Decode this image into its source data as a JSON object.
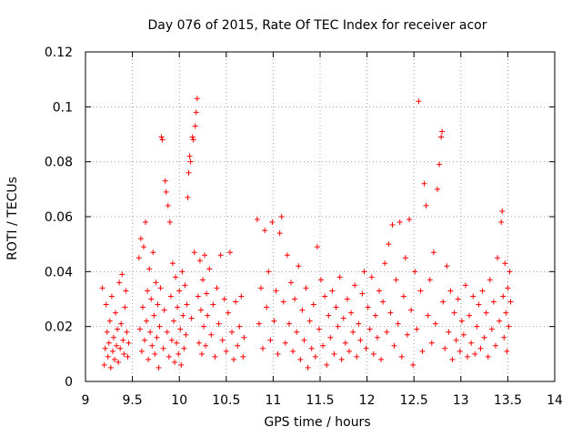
{
  "chart_data": {
    "type": "scatter",
    "title": "Day 076 of 2015, Rate Of TEC Index for receiver acor",
    "xlabel": "GPS time / hours",
    "ylabel": "ROTI / TECUs",
    "xlim": [
      9,
      14
    ],
    "ylim": [
      0,
      0.12
    ],
    "xticks": [
      9,
      9.5,
      10,
      10.5,
      11,
      11.5,
      12,
      12.5,
      13,
      13.5,
      14
    ],
    "xtick_labels": [
      "9",
      "9.5",
      "10",
      "10.5",
      "11",
      "11.5",
      "12",
      "12.5",
      "13",
      "13.5",
      "14"
    ],
    "yticks": [
      0,
      0.02,
      0.04,
      0.06,
      0.08,
      0.1,
      0.12
    ],
    "ytick_labels": [
      "0",
      "0.02",
      "0.04",
      "0.06",
      "0.08",
      "0.1",
      "0.12"
    ],
    "grid": true,
    "marker": "+",
    "color": "#ff0000",
    "series": [
      {
        "name": "ROTI",
        "points": [
          [
            9.18,
            0.034
          ],
          [
            9.2,
            0.006
          ],
          [
            9.21,
            0.012
          ],
          [
            9.22,
            0.028
          ],
          [
            9.23,
            0.018
          ],
          [
            9.24,
            0.009
          ],
          [
            9.25,
            0.014
          ],
          [
            9.26,
            0.022
          ],
          [
            9.27,
            0.005
          ],
          [
            9.28,
            0.031
          ],
          [
            9.29,
            0.011
          ],
          [
            9.3,
            0.016
          ],
          [
            9.31,
            0.008
          ],
          [
            9.32,
            0.025
          ],
          [
            9.33,
            0.013
          ],
          [
            9.34,
            0.019
          ],
          [
            9.35,
            0.007
          ],
          [
            9.36,
            0.036
          ],
          [
            9.37,
            0.012
          ],
          [
            9.38,
            0.021
          ],
          [
            9.39,
            0.039
          ],
          [
            9.4,
            0.015
          ],
          [
            9.41,
            0.01
          ],
          [
            9.42,
            0.027
          ],
          [
            9.43,
            0.033
          ],
          [
            9.44,
            0.018
          ],
          [
            9.45,
            0.009
          ],
          [
            9.46,
            0.014
          ],
          [
            9.57,
            0.045
          ],
          [
            9.58,
            0.019
          ],
          [
            9.59,
            0.052
          ],
          [
            9.6,
            0.011
          ],
          [
            9.61,
            0.027
          ],
          [
            9.62,
            0.049
          ],
          [
            9.63,
            0.015
          ],
          [
            9.64,
            0.058
          ],
          [
            9.65,
            0.022
          ],
          [
            9.66,
            0.033
          ],
          [
            9.67,
            0.008
          ],
          [
            9.68,
            0.041
          ],
          [
            9.69,
            0.018
          ],
          [
            9.7,
            0.03
          ],
          [
            9.71,
            0.013
          ],
          [
            9.72,
            0.047
          ],
          [
            9.73,
            0.024
          ],
          [
            9.74,
            0.01
          ],
          [
            9.75,
            0.036
          ],
          [
            9.76,
            0.016
          ],
          [
            9.77,
            0.028
          ],
          [
            9.78,
            0.005
          ],
          [
            9.79,
            0.02
          ],
          [
            9.8,
            0.034
          ],
          [
            9.81,
            0.089
          ],
          [
            9.82,
            0.088
          ],
          [
            9.83,
            0.012
          ],
          [
            9.84,
            0.026
          ],
          [
            9.85,
            0.073
          ],
          [
            9.86,
            0.069
          ],
          [
            9.87,
            0.018
          ],
          [
            9.88,
            0.064
          ],
          [
            9.89,
            0.009
          ],
          [
            9.9,
            0.058
          ],
          [
            9.91,
            0.031
          ],
          [
            9.92,
            0.015
          ],
          [
            9.93,
            0.043
          ],
          [
            9.94,
            0.022
          ],
          [
            9.95,
            0.007
          ],
          [
            9.96,
            0.038
          ],
          [
            9.97,
            0.014
          ],
          [
            9.98,
            0.027
          ],
          [
            9.99,
            0.01
          ],
          [
            10.0,
            0.033
          ],
          [
            10.01,
            0.019
          ],
          [
            10.02,
            0.006
          ],
          [
            10.03,
            0.04
          ],
          [
            10.04,
            0.024
          ],
          [
            10.05,
            0.012
          ],
          [
            10.06,
            0.035
          ],
          [
            10.07,
            0.017
          ],
          [
            10.08,
            0.028
          ],
          [
            10.09,
            0.067
          ],
          [
            10.1,
            0.076
          ],
          [
            10.11,
            0.082
          ],
          [
            10.12,
            0.08
          ],
          [
            10.13,
            0.023
          ],
          [
            10.14,
            0.089
          ],
          [
            10.15,
            0.088
          ],
          [
            10.16,
            0.047
          ],
          [
            10.17,
            0.093
          ],
          [
            10.18,
            0.098
          ],
          [
            10.19,
            0.103
          ],
          [
            10.2,
            0.031
          ],
          [
            10.21,
            0.014
          ],
          [
            10.22,
            0.044
          ],
          [
            10.23,
            0.026
          ],
          [
            10.24,
            0.01
          ],
          [
            10.25,
            0.037
          ],
          [
            10.26,
            0.02
          ],
          [
            10.27,
            0.046
          ],
          [
            10.28,
            0.013
          ],
          [
            10.29,
            0.032
          ],
          [
            10.3,
            0.024
          ],
          [
            10.32,
            0.041
          ],
          [
            10.34,
            0.017
          ],
          [
            10.36,
            0.028
          ],
          [
            10.38,
            0.009
          ],
          [
            10.4,
            0.034
          ],
          [
            10.42,
            0.021
          ],
          [
            10.44,
            0.046
          ],
          [
            10.46,
            0.015
          ],
          [
            10.48,
            0.03
          ],
          [
            10.5,
            0.011
          ],
          [
            10.52,
            0.025
          ],
          [
            10.54,
            0.047
          ],
          [
            10.56,
            0.018
          ],
          [
            10.58,
            0.008
          ],
          [
            10.6,
            0.029
          ],
          [
            10.62,
            0.013
          ],
          [
            10.64,
            0.02
          ],
          [
            10.66,
            0.031
          ],
          [
            10.68,
            0.009
          ],
          [
            10.69,
            0.016
          ],
          [
            10.83,
            0.059
          ],
          [
            10.85,
            0.021
          ],
          [
            10.87,
            0.034
          ],
          [
            10.89,
            0.012
          ],
          [
            10.91,
            0.055
          ],
          [
            10.93,
            0.027
          ],
          [
            10.95,
            0.04
          ],
          [
            10.97,
            0.015
          ],
          [
            10.99,
            0.058
          ],
          [
            11.01,
            0.022
          ],
          [
            11.03,
            0.033
          ],
          [
            11.05,
            0.01
          ],
          [
            11.07,
            0.054
          ],
          [
            11.09,
            0.06
          ],
          [
            11.11,
            0.029
          ],
          [
            11.13,
            0.014
          ],
          [
            11.15,
            0.046
          ],
          [
            11.17,
            0.021
          ],
          [
            11.19,
            0.036
          ],
          [
            11.21,
            0.011
          ],
          [
            11.23,
            0.03
          ],
          [
            11.25,
            0.018
          ],
          [
            11.27,
            0.042
          ],
          [
            11.29,
            0.008
          ],
          [
            11.31,
            0.026
          ],
          [
            11.33,
            0.015
          ],
          [
            11.35,
            0.034
          ],
          [
            11.37,
            0.005
          ],
          [
            11.39,
            0.022
          ],
          [
            11.41,
            0.012
          ],
          [
            11.43,
            0.028
          ],
          [
            11.45,
            0.009
          ],
          [
            11.47,
            0.049
          ],
          [
            11.49,
            0.019
          ],
          [
            11.51,
            0.037
          ],
          [
            11.53,
            0.013
          ],
          [
            11.55,
            0.031
          ],
          [
            11.57,
            0.006
          ],
          [
            11.59,
            0.024
          ],
          [
            11.61,
            0.016
          ],
          [
            11.63,
            0.033
          ],
          [
            11.65,
            0.01
          ],
          [
            11.67,
            0.027
          ],
          [
            11.69,
            0.02
          ],
          [
            11.71,
            0.038
          ],
          [
            11.73,
            0.008
          ],
          [
            11.75,
            0.023
          ],
          [
            11.77,
            0.014
          ],
          [
            11.79,
            0.03
          ],
          [
            11.81,
            0.011
          ],
          [
            11.83,
            0.025
          ],
          [
            11.85,
            0.018
          ],
          [
            11.87,
            0.035
          ],
          [
            11.89,
            0.009
          ],
          [
            11.91,
            0.021
          ],
          [
            11.93,
            0.015
          ],
          [
            11.95,
            0.032
          ],
          [
            11.97,
            0.04
          ],
          [
            11.99,
            0.012
          ],
          [
            12.01,
            0.027
          ],
          [
            12.03,
            0.019
          ],
          [
            12.05,
            0.038
          ],
          [
            12.07,
            0.01
          ],
          [
            12.09,
            0.024
          ],
          [
            12.11,
            0.016
          ],
          [
            12.13,
            0.033
          ],
          [
            12.15,
            0.008
          ],
          [
            12.17,
            0.029
          ],
          [
            12.19,
            0.043
          ],
          [
            12.21,
            0.018
          ],
          [
            12.23,
            0.05
          ],
          [
            12.25,
            0.025
          ],
          [
            12.27,
            0.057
          ],
          [
            12.29,
            0.013
          ],
          [
            12.31,
            0.037
          ],
          [
            12.33,
            0.021
          ],
          [
            12.35,
            0.058
          ],
          [
            12.37,
            0.009
          ],
          [
            12.39,
            0.031
          ],
          [
            12.41,
            0.045
          ],
          [
            12.43,
            0.017
          ],
          [
            12.45,
            0.059
          ],
          [
            12.47,
            0.026
          ],
          [
            12.49,
            0.006
          ],
          [
            12.51,
            0.04
          ],
          [
            12.53,
            0.019
          ],
          [
            12.55,
            0.102
          ],
          [
            12.57,
            0.033
          ],
          [
            12.59,
            0.011
          ],
          [
            12.61,
            0.072
          ],
          [
            12.63,
            0.064
          ],
          [
            12.65,
            0.024
          ],
          [
            12.67,
            0.037
          ],
          [
            12.69,
            0.014
          ],
          [
            12.71,
            0.047
          ],
          [
            12.73,
            0.021
          ],
          [
            12.75,
            0.07
          ],
          [
            12.77,
            0.079
          ],
          [
            12.79,
            0.089
          ],
          [
            12.8,
            0.091
          ],
          [
            12.81,
            0.029
          ],
          [
            12.83,
            0.012
          ],
          [
            12.85,
            0.042
          ],
          [
            12.87,
            0.018
          ],
          [
            12.89,
            0.033
          ],
          [
            12.91,
            0.008
          ],
          [
            12.93,
            0.025
          ],
          [
            12.95,
            0.015
          ],
          [
            12.97,
            0.03
          ],
          [
            12.99,
            0.011
          ],
          [
            13.01,
            0.022
          ],
          [
            13.03,
            0.017
          ],
          [
            13.05,
            0.035
          ],
          [
            13.07,
            0.009
          ],
          [
            13.09,
            0.024
          ],
          [
            13.11,
            0.014
          ],
          [
            13.13,
            0.031
          ],
          [
            13.15,
            0.01
          ],
          [
            13.17,
            0.02
          ],
          [
            13.19,
            0.028
          ],
          [
            13.21,
            0.012
          ],
          [
            13.23,
            0.033
          ],
          [
            13.25,
            0.016
          ],
          [
            13.27,
            0.025
          ],
          [
            13.29,
            0.009
          ],
          [
            13.31,
            0.037
          ],
          [
            13.33,
            0.019
          ],
          [
            13.35,
            0.029
          ],
          [
            13.37,
            0.013
          ],
          [
            13.39,
            0.045
          ],
          [
            13.41,
            0.022
          ],
          [
            13.43,
            0.058
          ],
          [
            13.44,
            0.062
          ],
          [
            13.45,
            0.031
          ],
          [
            13.46,
            0.016
          ],
          [
            13.47,
            0.043
          ],
          [
            13.48,
            0.025
          ],
          [
            13.49,
            0.011
          ],
          [
            13.5,
            0.034
          ],
          [
            13.51,
            0.02
          ],
          [
            13.52,
            0.04
          ],
          [
            13.53,
            0.029
          ]
        ]
      }
    ]
  }
}
